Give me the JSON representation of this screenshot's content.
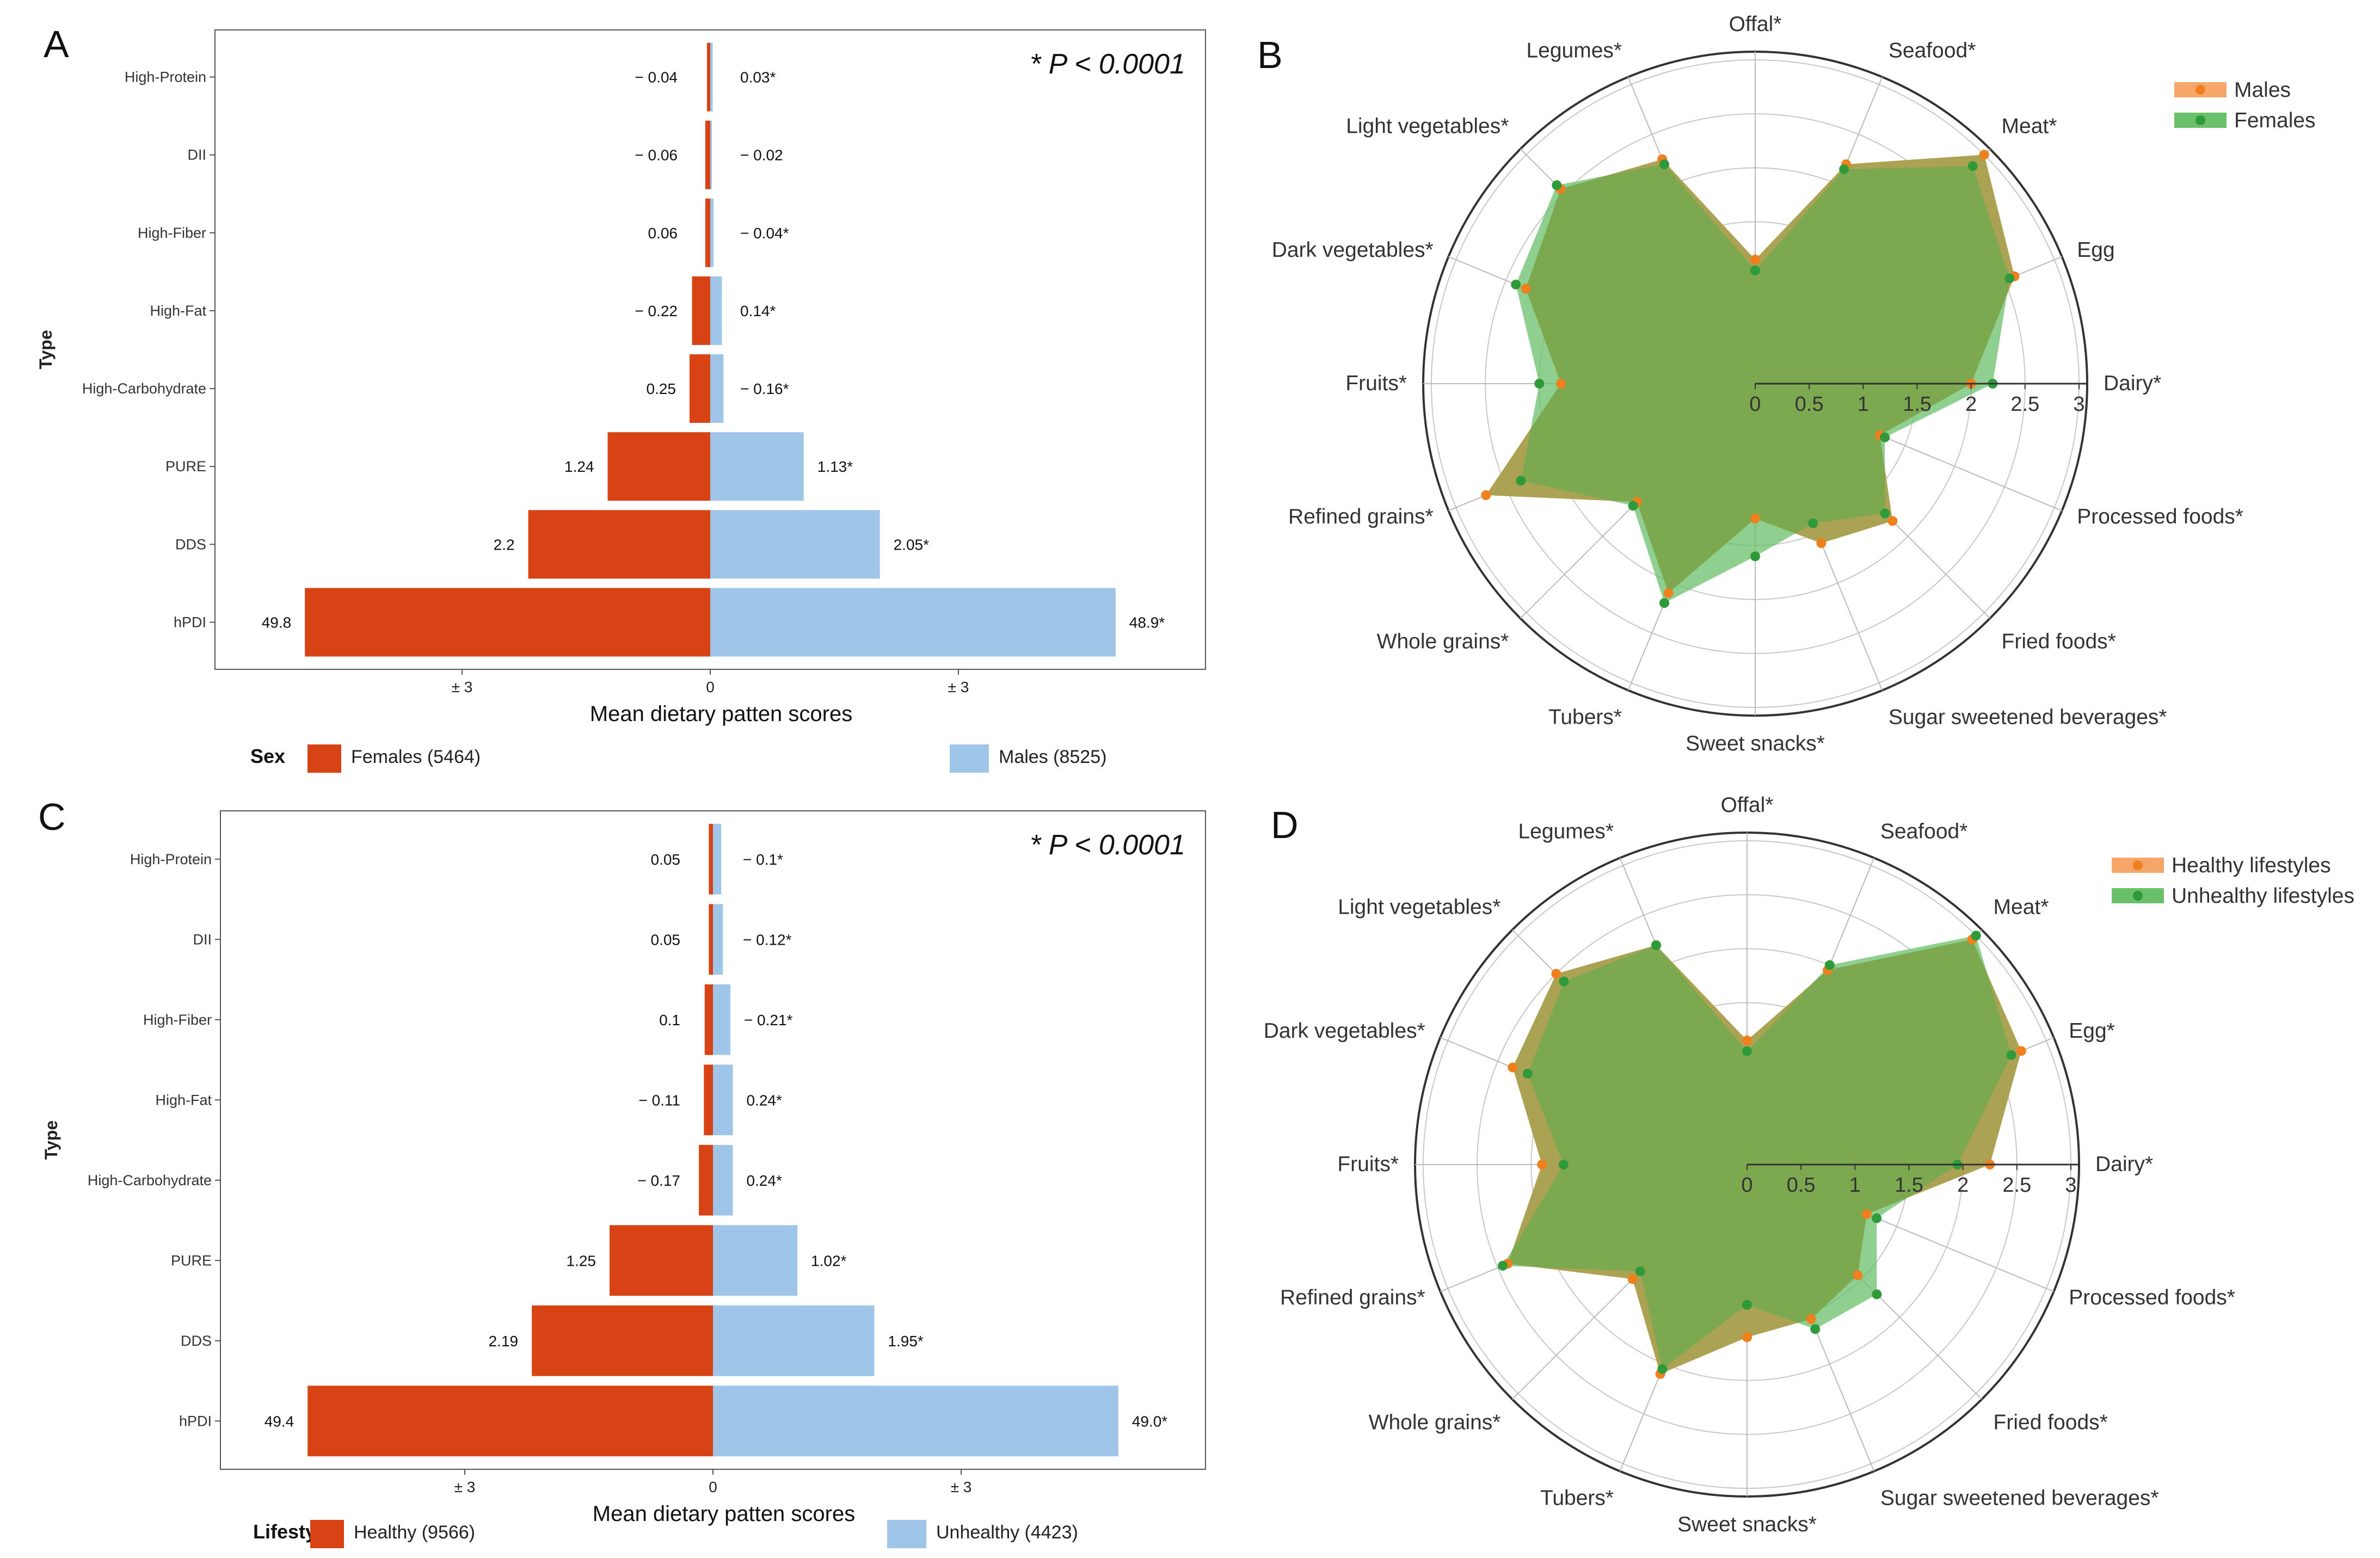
{
  "panels": {
    "A": "A",
    "B": "B",
    "C": "C",
    "D": "D"
  },
  "colors": {
    "red": "#d84315",
    "blue": "#9fc5e8",
    "orange": "#f7a66a",
    "green": "#6abf69",
    "olive": "#6f9a3a",
    "orange_dot": "#f07f1e",
    "green_dot": "#2e9a3a"
  },
  "chart_data": [
    {
      "panel": "A",
      "type": "bar",
      "orientation": "horizontal-diverging",
      "title": "* P < 0.0001",
      "ylabel": "Type",
      "xlabel": "Mean dietary patten scores",
      "x_ticks": [
        "± 3",
        "0",
        "± 3"
      ],
      "categories": [
        "High-Protein",
        "DII",
        "High-Fiber",
        "High-Fat",
        "High-Carbohydrate",
        "PURE",
        "DDS",
        "hPDI"
      ],
      "series": [
        {
          "name": "Females",
          "count": "(5464)",
          "display": [
            "− 0.04",
            "− 0.06",
            "0.06",
            "− 0.22",
            "0.25",
            "1.24",
            "2.2",
            "49.8"
          ],
          "lengths": [
            0.04,
            0.06,
            0.06,
            0.22,
            0.25,
            1.24,
            2.2,
            4.9
          ]
        },
        {
          "name": "Males",
          "count": "(8525)",
          "display": [
            "0.03*",
            "− 0.02",
            "− 0.04*",
            "0.14*",
            "− 0.16*",
            "1.13*",
            "2.05*",
            "48.9*"
          ],
          "lengths": [
            0.03,
            0.02,
            0.04,
            0.14,
            0.16,
            1.13,
            2.05,
            4.9
          ]
        }
      ],
      "legend_title": "Sex"
    },
    {
      "panel": "C",
      "type": "bar",
      "orientation": "horizontal-diverging",
      "title": "* P < 0.0001",
      "ylabel": "Type",
      "xlabel": "Mean dietary patten scores",
      "x_ticks": [
        "± 3",
        "0",
        "± 3"
      ],
      "categories": [
        "High-Protein",
        "DII",
        "High-Fiber",
        "High-Fat",
        "High-Carbohydrate",
        "PURE",
        "DDS",
        "hPDI"
      ],
      "series": [
        {
          "name": "Healthy",
          "count": "(9566)",
          "display": [
            "0.05",
            "0.05",
            "0.1",
            "− 0.11",
            "− 0.17",
            "1.25",
            "2.19",
            "49.4"
          ],
          "lengths": [
            0.05,
            0.05,
            0.1,
            0.11,
            0.17,
            1.25,
            2.19,
            4.9
          ]
        },
        {
          "name": "Unhealthy",
          "count": "(4423)",
          "display": [
            "− 0.1*",
            "− 0.12*",
            "− 0.21*",
            "0.24*",
            "0.24*",
            "1.02*",
            "1.95*",
            "49.0*"
          ],
          "lengths": [
            0.1,
            0.12,
            0.21,
            0.24,
            0.24,
            1.02,
            1.95,
            4.9
          ]
        }
      ],
      "legend_title": "Lifestyles"
    },
    {
      "panel": "B",
      "type": "radar",
      "axes": [
        "Offal*",
        "Seafood*",
        "Meat*",
        "Egg",
        "Dairy*",
        "Processed foods*",
        "Fried foods*",
        "Sugar sweetened beverages*",
        "Sweet snacks*",
        "Tubers*",
        "Whole grains*",
        "Refined grains*",
        "Fruits*",
        "Dark vegetables*",
        "Light vegetables*",
        "Legumes*"
      ],
      "r_ticks": [
        "0",
        "0.5",
        "1",
        "1.5",
        "2",
        "2.5",
        "3"
      ],
      "rmax": 3,
      "series": [
        {
          "name": "Males",
          "values": [
            1.15,
            2.2,
            3.0,
            2.6,
            2.0,
            1.25,
            1.8,
            1.6,
            1.25,
            2.1,
            1.55,
            2.7,
            1.8,
            2.3,
            2.55,
            2.25
          ]
        },
        {
          "name": "Females",
          "values": [
            1.05,
            2.15,
            2.85,
            2.55,
            2.2,
            1.3,
            1.7,
            1.4,
            1.6,
            2.2,
            1.6,
            2.35,
            2.0,
            2.4,
            2.6,
            2.2
          ]
        }
      ]
    },
    {
      "panel": "D",
      "type": "radar",
      "axes": [
        "Offal*",
        "Seafood*",
        "Meat*",
        "Egg*",
        "Dairy*",
        "Processed foods*",
        "Fried foods*",
        "Sugar sweetened beverages*",
        "Sweet snacks*",
        "Tubers*",
        "Whole grains*",
        "Refined grains*",
        "Fruits*",
        "Dark vegetables*",
        "Light vegetables*",
        "Legumes*"
      ],
      "r_ticks": [
        "0",
        "0.5",
        "1",
        "1.5",
        "2",
        "2.5",
        "3"
      ],
      "rmax": 3,
      "series": [
        {
          "name": "Healthy lifestyles",
          "values": [
            1.15,
            1.95,
            2.95,
            2.75,
            2.25,
            1.2,
            1.45,
            1.55,
            1.6,
            2.1,
            1.5,
            2.4,
            1.9,
            2.35,
            2.5,
            2.2
          ]
        },
        {
          "name": "Unhealthy lifestyles",
          "values": [
            1.05,
            2.0,
            3.0,
            2.65,
            1.95,
            1.3,
            1.7,
            1.65,
            1.3,
            2.05,
            1.4,
            2.45,
            1.7,
            2.2,
            2.4,
            2.2
          ]
        }
      ]
    }
  ]
}
